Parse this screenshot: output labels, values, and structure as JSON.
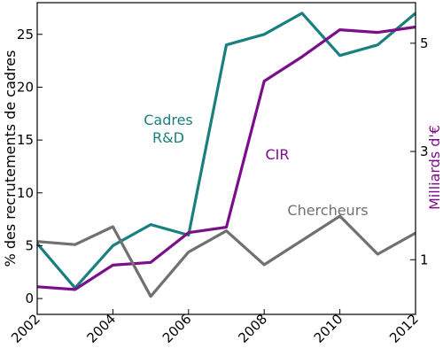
{
  "chart_data": {
    "type": "line",
    "x": [
      2002,
      2003,
      2004,
      2005,
      2006,
      2007,
      2008,
      2009,
      2010,
      2011,
      2012
    ],
    "y_left_label": "% des recrutements de cadres",
    "y_right_label": "Milliards d'€",
    "y_left_ticks": [
      0,
      5,
      10,
      15,
      20,
      25
    ],
    "y_left_range": [
      -1.5,
      28
    ],
    "y_right_ticks": [
      1,
      3,
      5
    ],
    "y_right_range": [
      -0.01,
      5.75
    ],
    "x_ticks": [
      "2002",
      "2004",
      "2006",
      "2008",
      "2010",
      "2012"
    ],
    "x_range": [
      2002,
      2012
    ],
    "grid": false,
    "series": [
      {
        "name": "Cadres\nR&D",
        "label_lines": [
          "Cadres",
          "R&D"
        ],
        "axis": "left",
        "color": "#1a7f7f",
        "values": [
          5.2,
          1.0,
          5.0,
          7.0,
          6.0,
          24.0,
          25.0,
          27.0,
          23.0,
          24.0,
          27.0
        ]
      },
      {
        "name": "CIR",
        "label_lines": [
          "CIR"
        ],
        "axis": "right",
        "color": "#7b0e8a",
        "values": [
          0.5,
          0.45,
          0.9,
          0.95,
          1.5,
          1.6,
          4.3,
          4.75,
          5.25,
          5.2,
          5.3
        ]
      },
      {
        "name": "Chercheurs",
        "label_lines": [
          "Chercheurs"
        ],
        "axis": "left",
        "color": "#707070",
        "values": [
          5.4,
          5.1,
          6.8,
          0.2,
          4.4,
          6.4,
          3.2,
          5.5,
          7.8,
          4.2,
          6.2
        ]
      }
    ]
  }
}
